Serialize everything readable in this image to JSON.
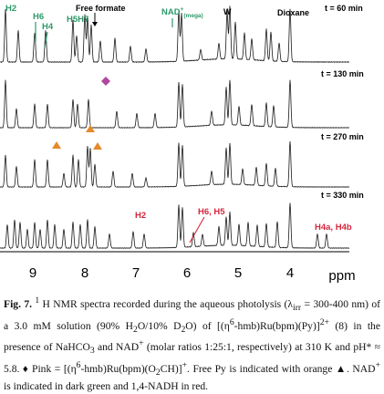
{
  "figure": {
    "spectra": [
      {
        "time_label": "t = 60 min"
      },
      {
        "time_label": "t = 130 min"
      },
      {
        "time_label": "t = 270 min"
      },
      {
        "time_label": "t = 330 min"
      }
    ],
    "annotations_top": {
      "h2": "H2",
      "h6": "H6",
      "h4": "H4",
      "h5h7": "H5H7",
      "free_formate": "Free formate",
      "nad_mega": "NAD",
      "nad_mega_sup": "+",
      "nad_mega_sub": "(mega)",
      "w": "W",
      "dioxane": "Dioxane"
    },
    "annotations_bottom": {
      "h2": "H2",
      "h6h5": "H6, H5",
      "h4ab": "H4a, H4b"
    },
    "axis": {
      "ticks": [
        "9",
        "8",
        "7",
        "6",
        "5",
        "4"
      ],
      "unit": "ppm"
    },
    "colors": {
      "nad_green": "#2e9a6a",
      "nadh_red": "#d7263d",
      "pink": "#b0479c",
      "orange": "#e6892a",
      "spectrum": "#1a1a1a"
    }
  },
  "caption": {
    "label": "Fig. 7.",
    "p1": " H NMR spectra recorded during the aqueous photolysis (λ",
    "p1_sup": "1",
    "irr": "irr",
    "p2": " = 300-400 nm) of a 3.0 mM solution (90% H",
    "p3": "O/10% D",
    "p4": "O) of [(η",
    "p5": "-hmb)Ru(bpm)(Py)]",
    "p5_sup": "2+",
    "p6": " (8) in the presence of NaHCO",
    "p7": " and NAD",
    "p8": " (molar ratios 1:25:1, respectively) at 310 K and pH* ≈ 5.8. ♦ Pink = [(η",
    "p9": "-hmb)Ru(bpm)(O",
    "p10": "CH)]",
    "p11": ". Free Py is indicated with orange ▲. NAD",
    "p12": " is indicated in dark green and 1,4-NADH in red.",
    "sub2": "2",
    "sup6": "6",
    "sup_plus": "+",
    "sub3": "3"
  }
}
